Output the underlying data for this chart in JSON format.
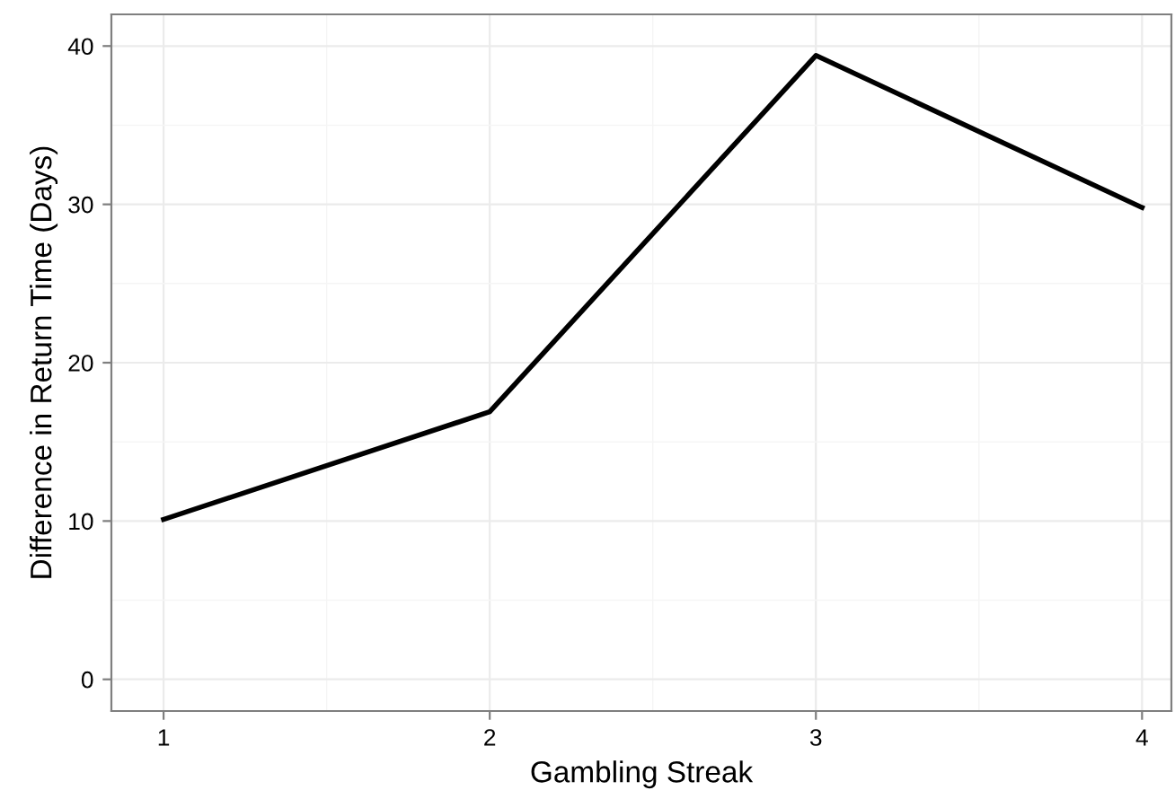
{
  "chart_data": {
    "type": "line",
    "xlabel": "Gambling Streak",
    "ylabel": "Difference in Return Time (Days)",
    "x": [
      1,
      2,
      3,
      4
    ],
    "series": [
      {
        "color": "#000000",
        "values": [
          10.1,
          16.9,
          39.4,
          29.8
        ]
      }
    ],
    "xlim": [
      0.84,
      4.09
    ],
    "xticks": [
      1,
      2,
      3,
      4
    ],
    "ylim": [
      -2.0,
      42.0
    ],
    "yticks": [
      0,
      10,
      20,
      30,
      40
    ],
    "grid": true,
    "marker": "none",
    "line_style": "solid"
  }
}
